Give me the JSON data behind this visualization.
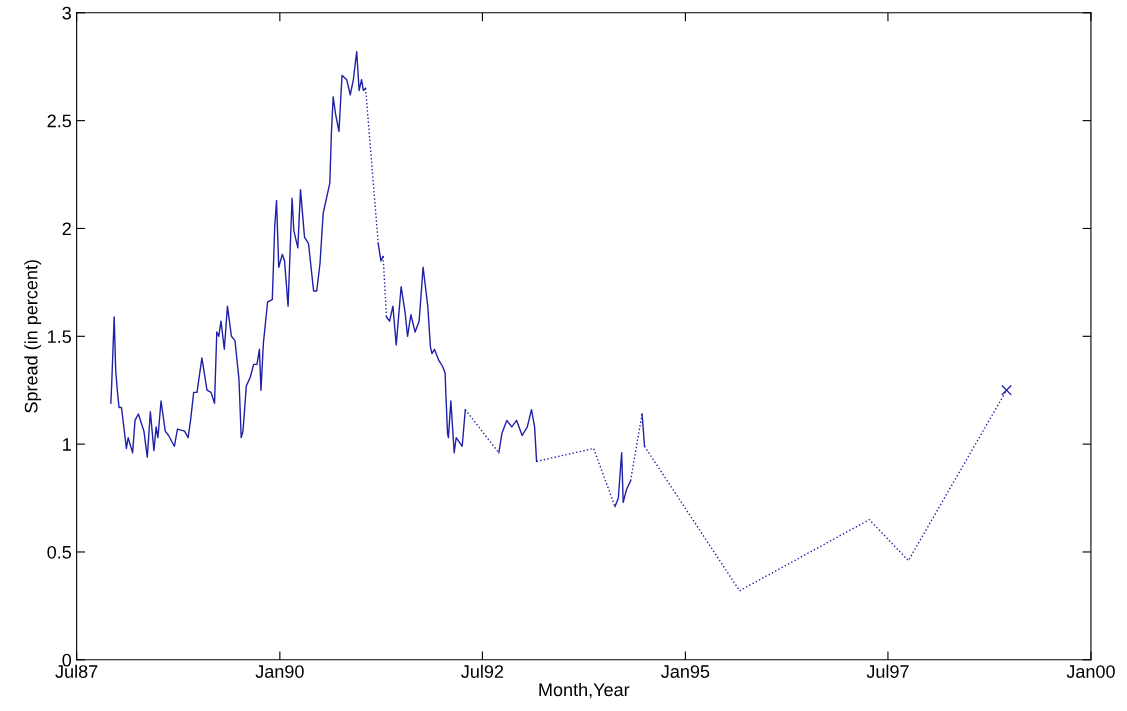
{
  "chart_data": {
    "type": "line",
    "xlabel": "Month,Year",
    "ylabel": "Spread (in percent)",
    "xlim": [
      "1987-07-01",
      "2000-01-01"
    ],
    "xticks": [
      {
        "value": "1987-07-01",
        "label": "Jul87"
      },
      {
        "value": "1990-01-01",
        "label": "Jan90"
      },
      {
        "value": "1992-07-01",
        "label": "Jul92"
      },
      {
        "value": "1995-01-01",
        "label": "Jan95"
      },
      {
        "value": "1997-07-01",
        "label": "Jul97"
      },
      {
        "value": "2000-01-01",
        "label": "Jan00"
      }
    ],
    "ylim": [
      0,
      3
    ],
    "yticks": [
      0,
      0.5,
      1,
      1.5,
      2,
      2.5,
      3
    ],
    "grid": false,
    "legend": false,
    "series": [
      {
        "line_style": "solid",
        "color": "#1f1fa8",
        "x": [
          "1987-12-02",
          "1987-12-06",
          "1987-12-17",
          "1987-12-24",
          "1988-01-01",
          "1988-01-08",
          "1988-01-19",
          "1988-02-10",
          "1988-02-18",
          "1988-03-09",
          "1988-03-20",
          "1988-04-04",
          "1988-04-29",
          "1988-05-14",
          "1988-05-28",
          "1988-06-13",
          "1988-06-23",
          "1988-07-01",
          "1988-07-15",
          "1988-08-03",
          "1988-08-18",
          "1988-09-13",
          "1988-09-27",
          "1988-10-29",
          "1988-11-14",
          "1988-11-25",
          "1988-12-09",
          "1988-12-24",
          "1989-01-15",
          "1989-02-07",
          "1989-02-25",
          "1989-03-13",
          "1989-03-23",
          "1989-04-01",
          "1989-04-11",
          "1989-04-26",
          "1989-05-10",
          "1989-05-28",
          "1989-06-13",
          "1989-07-01",
          "1989-07-11",
          "1989-07-19",
          "1989-08-03",
          "1989-08-21",
          "1989-09-05",
          "1989-09-20",
          "1989-10-01",
          "1989-10-08",
          "1989-10-19",
          "1989-11-07",
          "1989-11-28",
          "1989-12-09",
          "1989-12-17",
          "1989-12-27",
          "1990-01-12",
          "1990-01-22",
          "1990-02-07",
          "1990-02-25",
          "1990-03-05",
          "1990-03-23",
          "1990-04-04",
          "1990-04-22",
          "1990-05-10",
          "1990-06-02",
          "1990-06-16",
          "1990-07-01",
          "1990-07-15",
          "1990-07-30",
          "1990-08-14",
          "1990-08-21",
          "1990-08-29",
          "1990-09-09",
          "1990-09-24",
          "1990-10-08",
          "1990-10-29",
          "1990-11-14",
          "1990-11-28",
          "1990-12-13",
          "1990-12-24",
          "1991-01-04",
          "1991-01-12",
          "1991-01-22"
        ],
        "values": [
          1.19,
          1.28,
          1.59,
          1.34,
          1.24,
          1.17,
          1.17,
          0.98,
          1.03,
          0.96,
          1.11,
          1.14,
          1.06,
          0.94,
          1.15,
          0.97,
          1.08,
          1.03,
          1.2,
          1.06,
          1.04,
          0.99,
          1.07,
          1.06,
          1.03,
          1.11,
          1.24,
          1.24,
          1.4,
          1.25,
          1.24,
          1.19,
          1.52,
          1.5,
          1.57,
          1.44,
          1.64,
          1.5,
          1.48,
          1.3,
          1.03,
          1.06,
          1.27,
          1.31,
          1.37,
          1.37,
          1.44,
          1.25,
          1.47,
          1.66,
          1.67,
          2.01,
          2.13,
          1.82,
          1.88,
          1.85,
          1.64,
          2.14,
          1.99,
          1.91,
          2.18,
          1.96,
          1.93,
          1.71,
          1.71,
          1.84,
          2.07,
          2.14,
          2.21,
          2.44,
          2.61,
          2.53,
          2.45,
          2.71,
          2.69,
          2.62,
          2.69,
          2.82,
          2.64,
          2.69,
          2.64,
          2.65
        ]
      },
      {
        "line_style": "dotted",
        "color": "#1f1fa8",
        "x": [
          "1991-01-22",
          "1991-03-20"
        ],
        "values": [
          2.65,
          1.93
        ]
      },
      {
        "line_style": "solid",
        "color": "#1f1fa8",
        "x": [
          "1991-03-20",
          "1991-04-01",
          "1991-04-11"
        ],
        "values": [
          1.93,
          1.85,
          1.87
        ]
      },
      {
        "line_style": "dotted",
        "color": "#1f1fa8",
        "x": [
          "1991-04-11",
          "1991-04-26"
        ],
        "values": [
          1.87,
          1.59
        ]
      },
      {
        "line_style": "solid",
        "color": "#1f1fa8",
        "x": [
          "1991-04-26",
          "1991-05-10",
          "1991-05-25",
          "1991-06-09",
          "1991-07-01",
          "1991-07-19",
          "1991-07-30",
          "1991-08-14",
          "1991-09-02",
          "1991-09-20",
          "1991-10-08",
          "1991-10-29",
          "1991-11-10",
          "1991-11-17",
          "1991-11-28",
          "1991-12-17",
          "1992-01-04",
          "1992-01-15",
          "1992-01-19",
          "1992-01-26",
          "1992-01-30",
          "1992-02-10",
          "1992-02-25",
          "1992-03-05",
          "1992-04-01",
          "1992-04-15"
        ],
        "values": [
          1.59,
          1.57,
          1.64,
          1.46,
          1.73,
          1.61,
          1.5,
          1.6,
          1.52,
          1.57,
          1.82,
          1.64,
          1.45,
          1.42,
          1.44,
          1.39,
          1.36,
          1.33,
          1.22,
          1.05,
          1.03,
          1.2,
          0.96,
          1.03,
          0.99,
          1.16
        ]
      },
      {
        "line_style": "dotted",
        "color": "#1f1fa8",
        "x": [
          "1992-04-15",
          "1992-09-13"
        ],
        "values": [
          1.16,
          0.96
        ]
      },
      {
        "line_style": "solid",
        "color": "#1f1fa8",
        "x": [
          "1992-09-13",
          "1992-09-27",
          "1992-10-19",
          "1992-11-10",
          "1992-12-02",
          "1992-12-27",
          "1993-01-19",
          "1993-02-07",
          "1993-02-21",
          "1993-03-02"
        ],
        "values": [
          0.96,
          1.05,
          1.11,
          1.08,
          1.11,
          1.04,
          1.08,
          1.16,
          1.08,
          0.92
        ]
      },
      {
        "line_style": "dotted",
        "color": "#1f1fa8",
        "x": [
          "1993-03-02",
          "1993-11-14",
          "1994-02-18"
        ],
        "values": [
          0.92,
          0.98,
          0.71
        ]
      },
      {
        "line_style": "solid",
        "color": "#1f1fa8",
        "x": [
          "1994-02-18",
          "1994-03-05",
          "1994-03-20",
          "1994-03-27",
          "1994-04-11",
          "1994-04-29"
        ],
        "values": [
          0.71,
          0.75,
          0.96,
          0.73,
          0.79,
          0.83
        ]
      },
      {
        "line_style": "dotted",
        "color": "#1f1fa8",
        "x": [
          "1994-04-29",
          "1994-06-20"
        ],
        "values": [
          0.83,
          1.14
        ]
      },
      {
        "line_style": "solid",
        "color": "#1f1fa8",
        "x": [
          "1994-06-20",
          "1994-07-01"
        ],
        "values": [
          1.14,
          0.99
        ]
      },
      {
        "line_style": "dotted",
        "color": "#1f1fa8",
        "x": [
          "1994-07-01",
          "1995-09-02",
          "1997-04-08",
          "1997-10-01",
          "1998-12-17"
        ],
        "values": [
          0.99,
          0.32,
          0.65,
          0.46,
          1.25
        ]
      },
      {
        "type": "scatter",
        "marker": "cross",
        "color": "#1f1fa8",
        "x": [
          "1998-12-17"
        ],
        "values": [
          1.25
        ]
      }
    ]
  }
}
